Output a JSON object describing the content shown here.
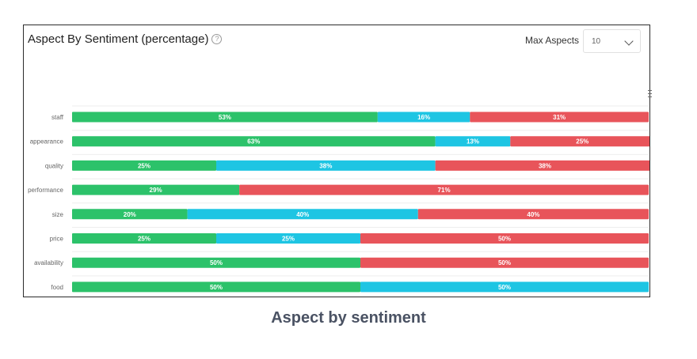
{
  "header": {
    "title": "Aspect By Sentiment (percentage)",
    "help_icon": "?",
    "max_aspects_label": "Max Aspects",
    "max_aspects_value": "10"
  },
  "caption": "Aspect by sentiment",
  "colors": {
    "positive": "#2cc26a",
    "neutral": "#1ec5e3",
    "negative": "#e8545a"
  },
  "chart_data": {
    "type": "bar",
    "orientation": "horizontal",
    "stacked": true,
    "title": "Aspect By Sentiment (percentage)",
    "categories": [
      "staff",
      "appearance",
      "quality",
      "performance",
      "size",
      "price",
      "availability",
      "food"
    ],
    "series": [
      {
        "color": "#2cc26a",
        "values": [
          53,
          63,
          25,
          29,
          20,
          25,
          50,
          50
        ]
      },
      {
        "color": "#1ec5e3",
        "values": [
          16,
          13,
          38,
          0,
          40,
          25,
          0,
          50
        ]
      },
      {
        "color": "#e8545a",
        "values": [
          31,
          25,
          38,
          71,
          40,
          50,
          50,
          0
        ]
      }
    ],
    "grid": true
  }
}
